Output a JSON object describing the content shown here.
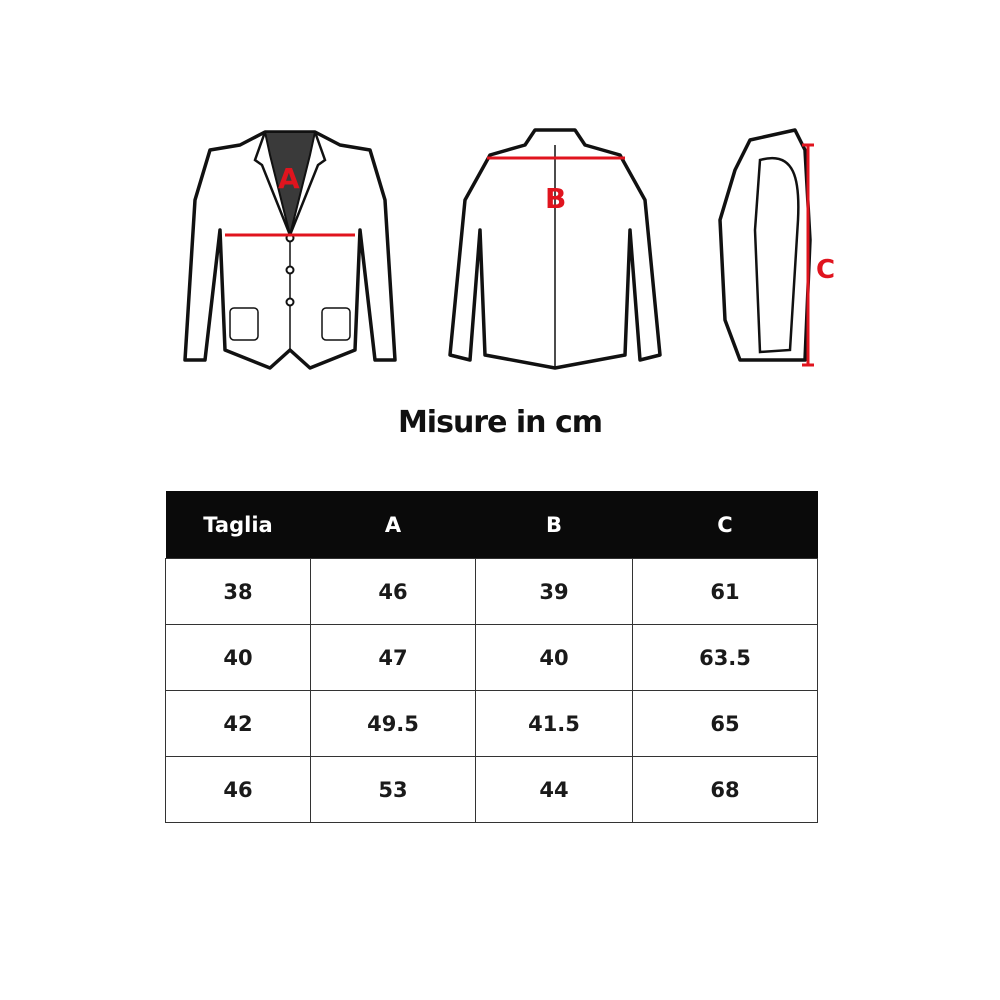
{
  "diagram": {
    "labels": {
      "front": "A",
      "back": "B",
      "side": "C"
    },
    "accent_color": "#e0141e"
  },
  "title": "Misure in cm",
  "table": {
    "headers": [
      "Taglia",
      "A",
      "B",
      "C"
    ],
    "rows": [
      [
        "38",
        "46",
        "39",
        "61"
      ],
      [
        "40",
        "47",
        "40",
        "63.5"
      ],
      [
        "42",
        "49.5",
        "41.5",
        "65"
      ],
      [
        "46",
        "53",
        "44",
        "68"
      ]
    ]
  }
}
